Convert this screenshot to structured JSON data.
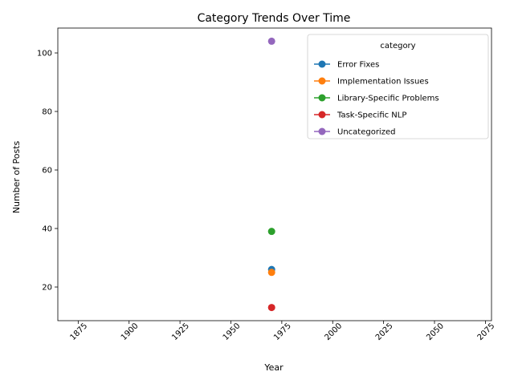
{
  "chart_data": {
    "type": "line",
    "title": "Category Trends Over Time",
    "xlabel": "Year",
    "ylabel": "Number of Posts",
    "xlim": [
      1865,
      2078
    ],
    "ylim": [
      8.5,
      108.5
    ],
    "xticks": [
      1875,
      1900,
      1925,
      1950,
      1975,
      2000,
      2025,
      2050,
      2075
    ],
    "yticks": [
      20,
      40,
      60,
      80,
      100
    ],
    "grid": false,
    "legend_title": "category",
    "legend_position": "top-right",
    "series": [
      {
        "name": "Error Fixes",
        "color": "#1f77b4",
        "x": [
          1970
        ],
        "y": [
          26
        ]
      },
      {
        "name": "Implementation Issues",
        "color": "#ff7f0e",
        "x": [
          1970
        ],
        "y": [
          25
        ]
      },
      {
        "name": "Library-Specific Problems",
        "color": "#2ca02c",
        "x": [
          1970
        ],
        "y": [
          39
        ]
      },
      {
        "name": "Task-Specific NLP",
        "color": "#d62728",
        "x": [
          1970
        ],
        "y": [
          13
        ]
      },
      {
        "name": "Uncategorized",
        "color": "#9467bd",
        "x": [
          1970
        ],
        "y": [
          104
        ]
      }
    ]
  }
}
